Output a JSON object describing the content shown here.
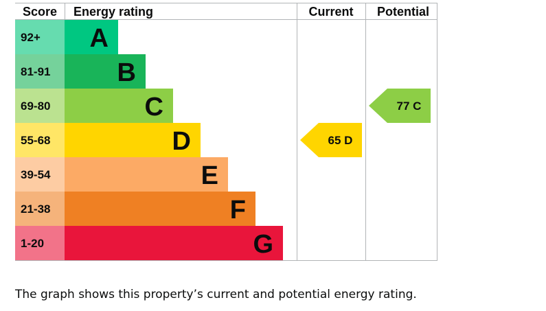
{
  "chart_data": {
    "type": "bar",
    "headers": {
      "score": "Score",
      "rating": "Energy rating",
      "current": "Current",
      "potential": "Potential"
    },
    "bands": [
      {
        "score": "92+",
        "letter": "A",
        "color": "#00c781",
        "score_bg": "#66dcaf"
      },
      {
        "score": "81-91",
        "letter": "B",
        "color": "#19b459",
        "score_bg": "#75d29b"
      },
      {
        "score": "69-80",
        "letter": "C",
        "color": "#8dce46",
        "score_bg": "#bbe290"
      },
      {
        "score": "55-68",
        "letter": "D",
        "color": "#ffd500",
        "score_bg": "#ffe666"
      },
      {
        "score": "39-54",
        "letter": "E",
        "color": "#fcaa65",
        "score_bg": "#fdcca3"
      },
      {
        "score": "21-38",
        "letter": "F",
        "color": "#ef8023",
        "score_bg": "#f5b37b"
      },
      {
        "score": "1-20",
        "letter": "G",
        "color": "#e9153b",
        "score_bg": "#f27389"
      }
    ],
    "current": {
      "value": 65,
      "letter": "D",
      "label": "65  D",
      "color": "#ffd500"
    },
    "potential": {
      "value": 77,
      "letter": "C",
      "label": "77  C",
      "color": "#8dce46"
    }
  },
  "caption": "The graph shows this property’s current and potential energy rating."
}
